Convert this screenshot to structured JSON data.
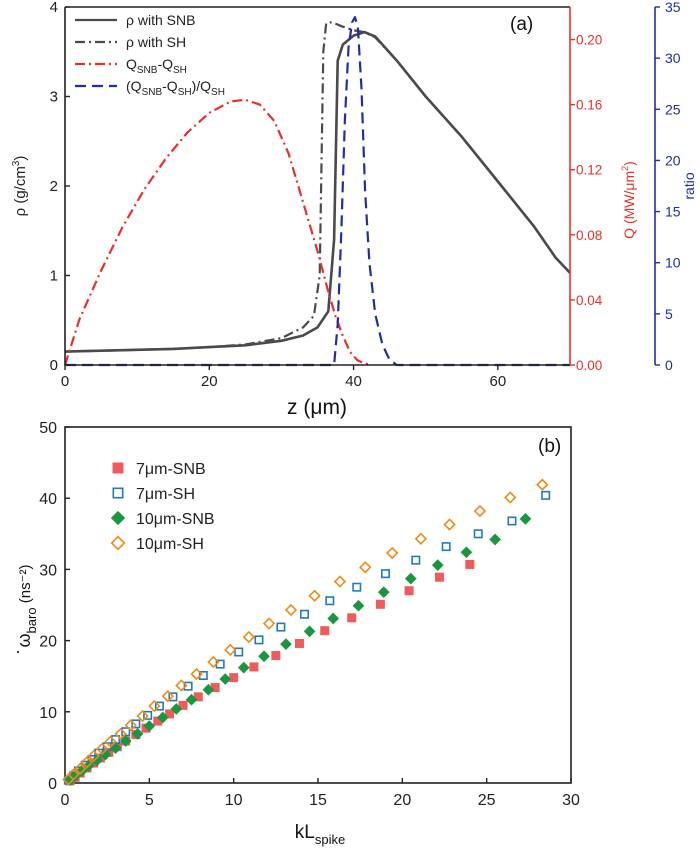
{
  "chart_data": [
    {
      "type": "line",
      "panel_label": "(a)",
      "xlabel": "z (μm)",
      "x_ticks": [
        "0",
        "20",
        "40",
        "60"
      ],
      "xlim": [
        0,
        70
      ],
      "axes": {
        "rho": {
          "label_main": "ρ (g/cm",
          "label_sup": "3",
          "label_end": ")",
          "ylim": [
            0,
            4
          ],
          "ticks": [
            "0",
            "1",
            "2",
            "3",
            "4"
          ],
          "color": "#333333"
        },
        "Q": {
          "label_main": "Q (MW/μm",
          "label_sup": "2",
          "label_end": ")",
          "ylim": [
            0,
            0.22
          ],
          "ticks": [
            "0.00",
            "0.04",
            "0.08",
            "0.12",
            "0.16",
            "0.20"
          ],
          "color": "#e8302a"
        },
        "ratio": {
          "label": "ratio",
          "ylim": [
            0,
            35
          ],
          "ticks": [
            "0",
            "5",
            "10",
            "15",
            "20",
            "25",
            "30",
            "35"
          ],
          "color": "#1f2ea8"
        }
      },
      "legend_position": "top-left",
      "series": [
        {
          "name": "ρ with SNB",
          "axis": "rho",
          "style": "solid",
          "color": "#4a4a4a",
          "x": [
            0,
            5,
            10,
            15,
            20,
            25,
            30,
            33,
            35,
            36.5,
            37.3,
            37.8,
            38.5,
            40,
            41.5,
            43,
            46,
            50,
            55,
            60,
            65,
            68,
            70
          ],
          "y": [
            0.15,
            0.16,
            0.17,
            0.18,
            0.2,
            0.22,
            0.27,
            0.33,
            0.42,
            0.6,
            1.4,
            3.4,
            3.58,
            3.68,
            3.72,
            3.67,
            3.4,
            3.0,
            2.55,
            2.05,
            1.55,
            1.2,
            1.03
          ]
        },
        {
          "name": "ρ with SH",
          "axis": "rho",
          "style": "dashdot",
          "color": "#4a4a4a",
          "x": [
            0,
            5,
            10,
            15,
            20,
            25,
            30,
            33,
            34.5,
            35.3,
            35.8,
            36.2,
            37,
            38.5,
            40,
            41.5,
            43,
            46,
            50,
            55,
            60,
            65,
            68,
            70
          ],
          "y": [
            0.15,
            0.16,
            0.17,
            0.18,
            0.2,
            0.23,
            0.3,
            0.42,
            0.55,
            1.0,
            3.5,
            3.82,
            3.83,
            3.78,
            3.74,
            3.72,
            3.66,
            3.4,
            3.0,
            2.55,
            2.05,
            1.55,
            1.2,
            1.03
          ]
        },
        {
          "name": "Q_SNB-Q_SH",
          "axis": "Q",
          "style": "dashdot",
          "color": "#e8302a",
          "x": [
            0,
            2,
            5,
            8,
            11,
            14,
            17,
            20,
            23,
            25,
            27,
            29,
            31,
            33,
            35,
            36.5,
            37.5,
            38.5,
            39.5,
            40.5,
            41.5,
            42.5
          ],
          "y": [
            0,
            0.028,
            0.058,
            0.085,
            0.108,
            0.127,
            0.143,
            0.155,
            0.162,
            0.163,
            0.16,
            0.15,
            0.13,
            0.1,
            0.07,
            0.045,
            0.03,
            0.018,
            0.008,
            0.003,
            0.001,
            0
          ]
        },
        {
          "name": "(Q_SNB-Q_SH)/Q_SH",
          "axis": "ratio",
          "style": "dash",
          "color": "#1f2ea8",
          "x": [
            0,
            10,
            20,
            30,
            35,
            37.3,
            37.8,
            38.3,
            38.8,
            39.3,
            39.8,
            40.2,
            40.6,
            41.1,
            41.6,
            42.2,
            43,
            44,
            45,
            46,
            50,
            60,
            70
          ],
          "y": [
            0,
            0,
            0,
            0,
            0,
            0,
            4,
            13,
            24,
            31,
            33.5,
            34,
            33,
            27,
            17,
            10,
            5,
            2,
            0.5,
            0,
            0,
            0,
            0
          ]
        }
      ],
      "legend": [
        {
          "label": "ρ with SNB",
          "style": "solid",
          "color": "#4a4a4a"
        },
        {
          "label": "ρ with SH",
          "style": "dashdot",
          "color": "#4a4a4a"
        },
        {
          "label": "Q",
          "sub1": "SNB",
          "mid": "-Q",
          "sub2": "SH",
          "end": "",
          "style": "dashdot",
          "color": "#e8302a"
        },
        {
          "label": "(Q",
          "sub1": "SNB",
          "mid": "-Q",
          "sub2": "SH",
          "end": ")/Q",
          "sub3": "SH",
          "style": "dash",
          "color": "#1f2ea8"
        }
      ]
    },
    {
      "type": "scatter",
      "panel_label": "(b)",
      "xlabel_main": "kL",
      "xlabel_sub": "spike",
      "ylabel_main": "ω",
      "ylabel_sub": "baro",
      "ylabel_unit": " (ns⁻²)",
      "xlim": [
        0,
        30
      ],
      "ylim": [
        0,
        50
      ],
      "x_ticks": [
        "0",
        "5",
        "10",
        "15",
        "20",
        "25",
        "30"
      ],
      "y_ticks": [
        "0",
        "10",
        "20",
        "30",
        "40",
        "50"
      ],
      "legend_position": "top-left",
      "series": [
        {
          "name": "7μm-SNB",
          "marker": "filled-square",
          "color": "#ef5a5a",
          "x": [
            0.3,
            0.6,
            0.9,
            1.3,
            1.7,
            2.1,
            2.6,
            3.1,
            3.6,
            4.2,
            4.8,
            5.5,
            6.2,
            7.0,
            7.9,
            8.9,
            10.0,
            11.2,
            12.5,
            13.9,
            15.4,
            17.0,
            18.7,
            20.4,
            22.2,
            24.0
          ],
          "y": [
            0.3,
            0.8,
            1.4,
            2.1,
            2.8,
            3.5,
            4.3,
            5.1,
            5.9,
            6.8,
            7.7,
            8.7,
            9.7,
            10.9,
            12.1,
            13.4,
            14.8,
            16.3,
            17.9,
            19.6,
            21.4,
            23.2,
            25.1,
            27.0,
            28.9,
            30.7
          ]
        },
        {
          "name": "7μm-SH",
          "marker": "open-square",
          "color": "#1f7ac2",
          "x": [
            0.2,
            0.5,
            0.8,
            1.2,
            1.6,
            2.0,
            2.5,
            3.0,
            3.6,
            4.2,
            4.9,
            5.6,
            6.4,
            7.3,
            8.2,
            9.2,
            10.3,
            11.5,
            12.8,
            14.2,
            15.7,
            17.3,
            19.0,
            20.8,
            22.6,
            24.5,
            26.5,
            28.5
          ],
          "y": [
            0.4,
            1.0,
            1.7,
            2.5,
            3.3,
            4.2,
            5.1,
            6.1,
            7.2,
            8.3,
            9.5,
            10.8,
            12.1,
            13.6,
            15.1,
            16.7,
            18.4,
            20.1,
            21.9,
            23.7,
            25.6,
            27.5,
            29.4,
            31.3,
            33.2,
            35.0,
            36.8,
            40.4
          ]
        },
        {
          "name": "10μm-SNB",
          "marker": "filled-diamond",
          "color": "#1a9641",
          "x": [
            0.3,
            0.6,
            1.0,
            1.4,
            1.9,
            2.4,
            3.0,
            3.6,
            4.3,
            5.0,
            5.8,
            6.6,
            7.5,
            8.5,
            9.5,
            10.6,
            11.8,
            13.1,
            14.5,
            15.9,
            17.4,
            18.9,
            20.5,
            22.1,
            23.8,
            25.5,
            27.3
          ],
          "y": [
            0.4,
            1.0,
            1.7,
            2.4,
            3.2,
            4.0,
            4.9,
            5.9,
            6.9,
            8.0,
            9.2,
            10.4,
            11.7,
            13.1,
            14.6,
            16.2,
            17.8,
            19.5,
            21.3,
            23.1,
            24.9,
            26.8,
            28.7,
            30.6,
            32.4,
            34.2,
            37.1
          ]
        },
        {
          "name": "10μm-SH",
          "marker": "open-diamond",
          "color": "#f08a16",
          "x": [
            0.2,
            0.5,
            0.9,
            1.3,
            1.7,
            2.2,
            2.7,
            3.3,
            3.9,
            4.6,
            5.3,
            6.1,
            6.9,
            7.8,
            8.8,
            9.8,
            10.9,
            12.1,
            13.4,
            14.8,
            16.3,
            17.8,
            19.4,
            21.1,
            22.8,
            24.6,
            26.4,
            28.3
          ],
          "y": [
            0.5,
            1.2,
            2.0,
            2.9,
            3.8,
            4.8,
            5.8,
            6.9,
            8.1,
            9.4,
            10.8,
            12.2,
            13.7,
            15.3,
            17.0,
            18.7,
            20.5,
            22.4,
            24.3,
            26.3,
            28.3,
            30.3,
            32.3,
            34.3,
            36.3,
            38.2,
            40.1,
            41.9
          ]
        }
      ]
    }
  ]
}
